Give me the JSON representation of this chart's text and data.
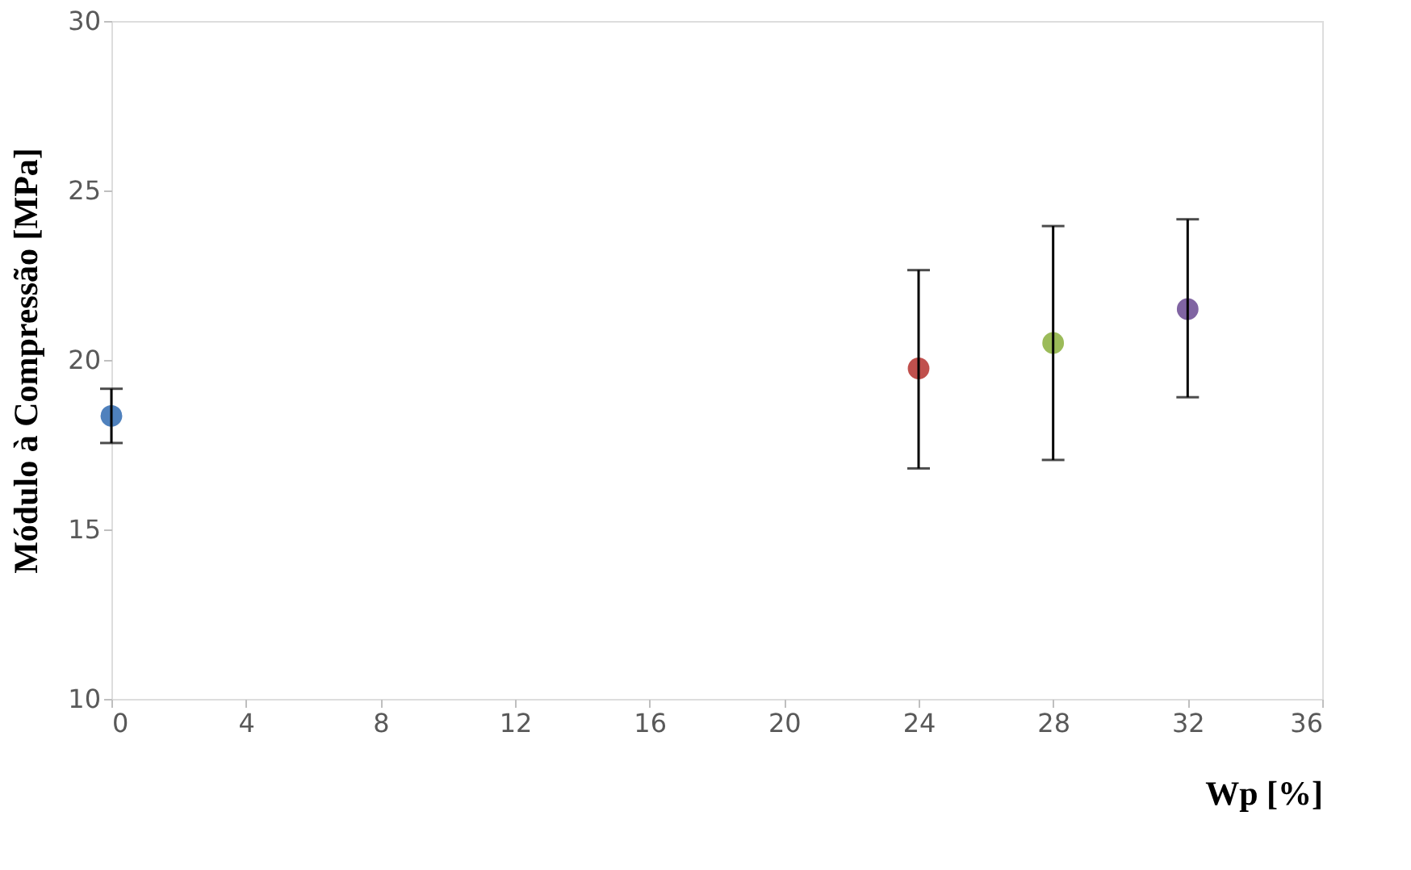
{
  "chart_data": {
    "type": "scatter",
    "xlabel": "Wp [%]",
    "ylabel": "Módulo à Compressão [MPa]",
    "xlim": [
      0,
      36
    ],
    "xticks": [
      0,
      4,
      8,
      12,
      16,
      20,
      24,
      28,
      32,
      36
    ],
    "ylim": [
      10,
      30
    ],
    "yticks": [
      10,
      15,
      20,
      25,
      30
    ],
    "grid": false,
    "legend": false,
    "marker": "circle",
    "series": [
      {
        "color": "#4f81bd",
        "x": [
          0
        ],
        "values": [
          18.35
        ],
        "errors": [
          [
            17.55,
            19.15
          ]
        ]
      },
      {
        "color": "#c0504d",
        "x": [
          24
        ],
        "values": [
          19.75
        ],
        "errors": [
          [
            16.8,
            22.65
          ]
        ]
      },
      {
        "color": "#9bbb59",
        "x": [
          28
        ],
        "values": [
          20.5
        ],
        "errors": [
          [
            17.05,
            23.95
          ]
        ]
      },
      {
        "color": "#8064a2",
        "x": [
          32
        ],
        "values": [
          21.5
        ],
        "errors": [
          [
            18.9,
            24.15
          ]
        ]
      }
    ]
  }
}
